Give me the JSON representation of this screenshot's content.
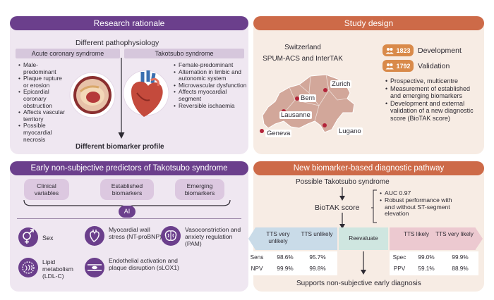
{
  "colors": {
    "purple": "#6b3f8c",
    "orange": "#cd6a48",
    "lavender": "#efe7f1",
    "peach": "#f7ece4"
  },
  "rationale": {
    "header": "Research rationale",
    "subtitle": "Different pathophysiology",
    "acs_label": "Acute coronary syndrome",
    "tako_label": "Takotsubo syndrome",
    "acs_points": [
      "Male-predominant",
      "Plaque rupture or erosion",
      "Epicardial coronary obstruction",
      "Affects vascular territory",
      "Possible myocardial necrosis"
    ],
    "tako_points": [
      "Female-predominant",
      "Alternation in limbic and autonomic system",
      "Microvascular dysfunction",
      "Affects myocardial segment",
      "Reversible ischaemia"
    ],
    "footer": "Different biomarker profile",
    "icons": [
      "artery-cross-section-icon",
      "heart-icon",
      "arrow-down-icon"
    ]
  },
  "design": {
    "header": "Study design",
    "country": "Switzerland",
    "cohorts": "SPUM-ACS and InterTAK",
    "development_count": "1823",
    "development_label": "Development",
    "validation_count": "1792",
    "validation_label": "Validation",
    "cities": [
      "Zurich",
      "Bern",
      "Lausanne",
      "Geneva",
      "Lugano"
    ],
    "points": [
      "Prospective, multicentre",
      "Measurement of established and emerging biomarkers",
      "Development and external validation of a new diagnostic score (BioTAK score)"
    ],
    "icons": [
      "people-icon",
      "map-of-switzerland-icon",
      "city-dot-icon"
    ]
  },
  "predictors": {
    "header": "Early non-subjective predictors of Takotsubo syndrome",
    "categories": [
      "Clinical variables",
      "Established biomarkers",
      "Emerging biomarkers"
    ],
    "ai_label": "AI",
    "items": [
      {
        "label": "Sex",
        "icon": "sex-symbols-icon"
      },
      {
        "label": "Myocardial wall stress (NT-proBNP)",
        "icon": "heart-outline-icon"
      },
      {
        "label": "Vasoconstriction and anxiety regulation (PAM)",
        "icon": "brain-icon"
      },
      {
        "label": "Lipid metabolism (LDL-C)",
        "icon": "lipid-molecule-icon"
      },
      {
        "label": "Endothelial activation and plaque disruption (sLOX1)",
        "icon": "vessel-icon"
      }
    ]
  },
  "pathway": {
    "header": "New biomarker-based diagnostic pathway",
    "start": "Possible Takotsubo syndrome",
    "score_label": "BioTAK score",
    "score_points": [
      "AUC 0.97",
      "Robust performance with and without ST-segment elevation"
    ],
    "bands": [
      "TTS very unlikely",
      "TTS unlikely",
      "Reevaluate",
      "TTS likely",
      "TTS very likely"
    ],
    "left_metrics": [
      {
        "name": "Sens",
        "values": [
          "98.6%",
          "95.7%"
        ]
      },
      {
        "name": "NPV",
        "values": [
          "99.9%",
          "99.8%"
        ]
      }
    ],
    "right_metrics": [
      {
        "name": "Spec",
        "values": [
          "99.0%",
          "99.9%"
        ]
      },
      {
        "name": "PPV",
        "values": [
          "59.1%",
          "88.9%"
        ]
      }
    ],
    "footer": "Supports non-subjective early diagnosis"
  }
}
